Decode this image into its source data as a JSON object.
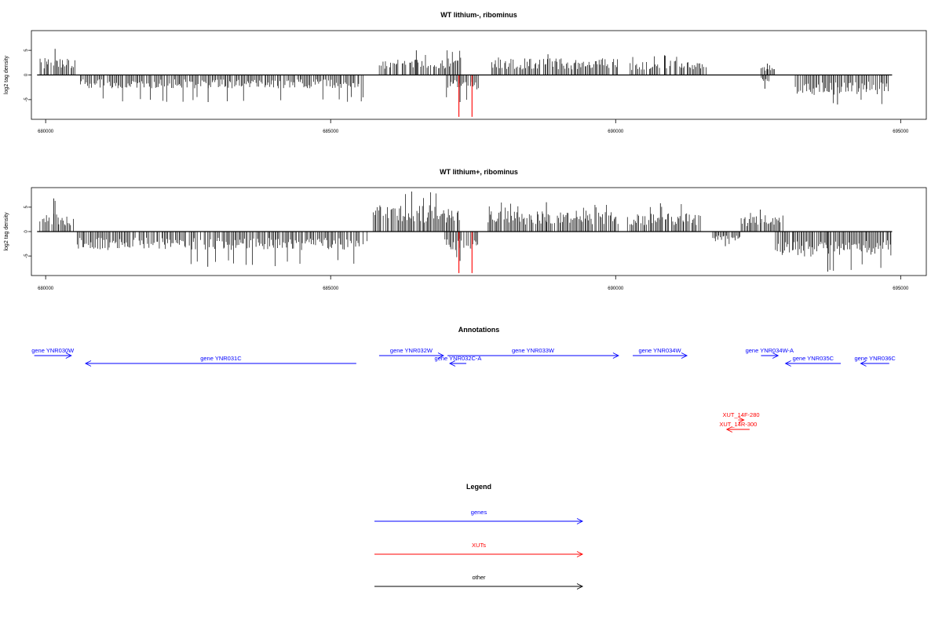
{
  "chart_data": [
    {
      "type": "bar",
      "title": "WT lithium-, ribominus",
      "ylabel": "log2 tag density",
      "xlim": [
        679750,
        695450
      ],
      "ylim": [
        -9,
        9
      ],
      "x_ticks": [
        680000,
        685000,
        690000,
        695000
      ],
      "y_ticks": [
        -5,
        0,
        5
      ],
      "colors": {
        "normal": "#000000",
        "highlight": "#ff0000"
      },
      "baseline": {
        "x": [
          679850,
          694850
        ]
      },
      "segments": [
        {
          "start": 679850,
          "end": 680550,
          "strand": 1,
          "mean": 2.6,
          "peak": 5.3
        },
        {
          "start": 680600,
          "end": 685600,
          "strand": -1,
          "mean": -2.0,
          "peak": -5.5
        },
        {
          "start": 685850,
          "end": 687300,
          "strand": 1,
          "mean": 2.6,
          "peak": 5.0
        },
        {
          "start": 687000,
          "end": 687600,
          "strand": -1,
          "mean": -2.2,
          "peak": -5.5
        },
        {
          "start": 687800,
          "end": 690050,
          "strand": 1,
          "mean": 2.5,
          "peak": 4.2
        },
        {
          "start": 690250,
          "end": 691600,
          "strand": 1,
          "mean": 2.2,
          "peak": 4.0
        },
        {
          "start": 692550,
          "end": 692800,
          "strand": 1,
          "mean": 1.2,
          "peak": 2.3
        },
        {
          "start": 692550,
          "end": 692700,
          "strand": -1,
          "mean": -1.0,
          "peak": -2.8
        },
        {
          "start": 693150,
          "end": 694800,
          "strand": -1,
          "mean": -3.0,
          "peak": -6.0
        }
      ],
      "highlights": [
        {
          "x": 687250,
          "y": -8.5
        },
        {
          "x": 687480,
          "y": -8.5
        }
      ]
    },
    {
      "type": "bar",
      "title": "WT lithium+, ribominus",
      "ylabel": "log2 tag density",
      "xlim": [
        679750,
        695450
      ],
      "ylim": [
        -9,
        9
      ],
      "x_ticks": [
        680000,
        685000,
        690000,
        695000
      ],
      "y_ticks": [
        -5,
        0,
        5
      ],
      "colors": {
        "normal": "#000000",
        "highlight": "#ff0000"
      },
      "baseline": {
        "x": [
          679850,
          694850
        ]
      },
      "segments": [
        {
          "start": 679850,
          "end": 680500,
          "strand": 1,
          "mean": 2.8,
          "peak": 6.8
        },
        {
          "start": 680550,
          "end": 685650,
          "strand": -1,
          "mean": -2.8,
          "peak": -7.2
        },
        {
          "start": 685700,
          "end": 687300,
          "strand": 1,
          "mean": 4.0,
          "peak": 8.2
        },
        {
          "start": 687000,
          "end": 687600,
          "strand": -1,
          "mean": -2.8,
          "peak": -6.0
        },
        {
          "start": 687750,
          "end": 690050,
          "strand": 1,
          "mean": 3.2,
          "peak": 6.0
        },
        {
          "start": 690200,
          "end": 691500,
          "strand": 1,
          "mean": 2.8,
          "peak": 5.8
        },
        {
          "start": 691700,
          "end": 692200,
          "strand": -1,
          "mean": -1.5,
          "peak": -3.0
        },
        {
          "start": 692200,
          "end": 692950,
          "strand": 1,
          "mean": 2.5,
          "peak": 4.5
        },
        {
          "start": 692800,
          "end": 694850,
          "strand": -1,
          "mean": -3.8,
          "peak": -8.2
        }
      ],
      "highlights": [
        {
          "x": 687250,
          "y": -8.5
        },
        {
          "x": 687480,
          "y": -8.5
        }
      ]
    },
    {
      "type": "annotation_track",
      "title": "Annotations",
      "xlim": [
        679750,
        695450
      ],
      "features": [
        {
          "label": "gene YNR030W",
          "start": 679800,
          "end": 680450,
          "strand": "+",
          "color": "#0000ff",
          "row": 0
        },
        {
          "label": "gene YNR031C",
          "start": 680700,
          "end": 685450,
          "strand": "-",
          "color": "#0000ff",
          "row": 1
        },
        {
          "label": "gene YNR032W",
          "start": 685850,
          "end": 686980,
          "strand": "+",
          "color": "#0000ff",
          "row": 0
        },
        {
          "label": "gene YNR032C-A",
          "start": 687090,
          "end": 687380,
          "strand": "-",
          "color": "#0000ff",
          "row": 1
        },
        {
          "label": "gene YNR033W",
          "start": 687050,
          "end": 690050,
          "strand": "+",
          "color": "#0000ff",
          "row": 0
        },
        {
          "label": "gene YNR034W",
          "start": 690300,
          "end": 691250,
          "strand": "+",
          "color": "#0000ff",
          "row": 0
        },
        {
          "label": "gene YNR034W-A",
          "start": 692550,
          "end": 692850,
          "strand": "+",
          "color": "#0000ff",
          "row": 0
        },
        {
          "label": "gene YNR035C",
          "start": 692980,
          "end": 693950,
          "strand": "-",
          "color": "#0000ff",
          "row": 1
        },
        {
          "label": "gene YNR036C",
          "start": 694300,
          "end": 694800,
          "strand": "-",
          "color": "#0000ff",
          "row": 1
        },
        {
          "label": "XUT_14F-280",
          "start": 692150,
          "end": 692250,
          "strand": "+",
          "color": "#ff0000",
          "row": 3
        },
        {
          "label": "XUT_14R-300",
          "start": 691950,
          "end": 692350,
          "strand": "-",
          "color": "#ff0000",
          "row": 4
        }
      ]
    }
  ],
  "legend": {
    "title": "Legend",
    "items": [
      {
        "label": "genes",
        "color": "#0000ff"
      },
      {
        "label": "XUTs",
        "color": "#ff0000"
      },
      {
        "label": "other",
        "color": "#000000"
      }
    ]
  }
}
